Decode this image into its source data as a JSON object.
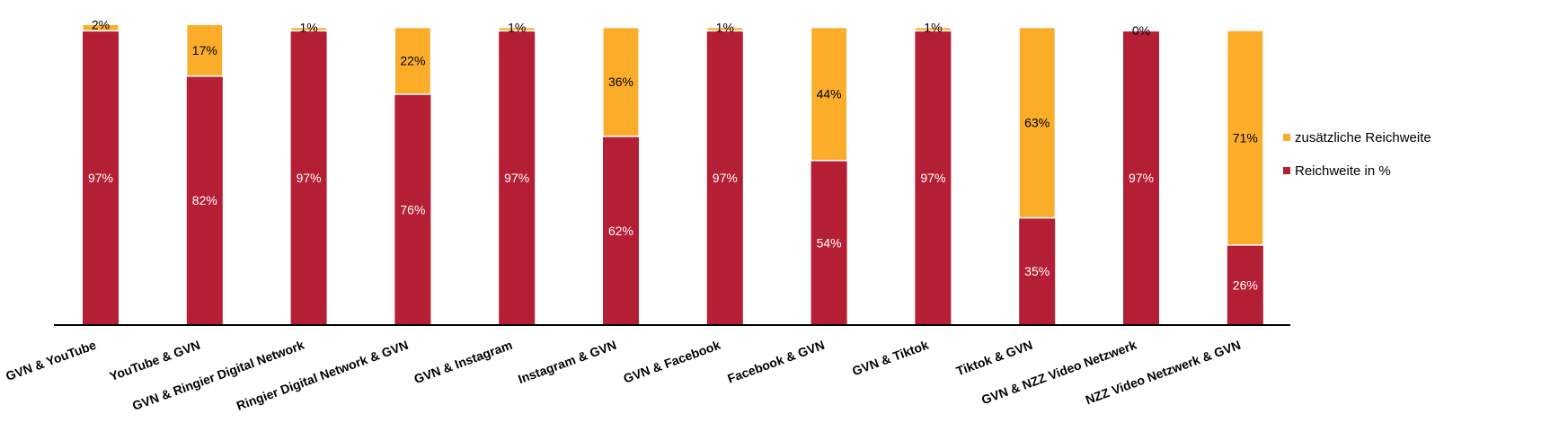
{
  "chart_data": {
    "type": "bar",
    "stacked": true,
    "categories": [
      "GVN & YouTube",
      "YouTube & GVN",
      "GVN & Ringier Digital Network",
      "Ringier Digital Network & GVN",
      "GVN & Instagram",
      "Instagram & GVN",
      "GVN & Facebook",
      "Facebook & GVN",
      "GVN & Tiktok",
      "Tiktok & GVN",
      "GVN & NZZ Video Netzwerk",
      "NZZ Video Netzwerk & GVN"
    ],
    "series": [
      {
        "name": "Reichweite in %",
        "color": "#b51f35",
        "values": [
          97,
          82,
          97,
          76,
          97,
          62,
          97,
          54,
          97,
          35,
          97,
          26
        ],
        "labels": [
          "97%",
          "82%",
          "97%",
          "76%",
          "97%",
          "62%",
          "97%",
          "54%",
          "97%",
          "35%",
          "97%",
          "26%"
        ]
      },
      {
        "name": "zusätzliche Reichweite",
        "color": "#fbad2a",
        "values": [
          2,
          17,
          1,
          22,
          1,
          36,
          1,
          44,
          1,
          63,
          0,
          71
        ],
        "labels": [
          "2%",
          "17%",
          "1%",
          "22%",
          "1%",
          "36%",
          "1%",
          "44%",
          "1%",
          "63%",
          "0%",
          "71%"
        ]
      }
    ],
    "legend": {
      "position": "right",
      "order": [
        "zusätzliche Reichweite",
        "Reichweite in %"
      ]
    },
    "ylim": [
      0,
      100
    ],
    "grid": false,
    "y_axis_visible": false,
    "title": "",
    "xlabel": "",
    "ylabel": ""
  }
}
